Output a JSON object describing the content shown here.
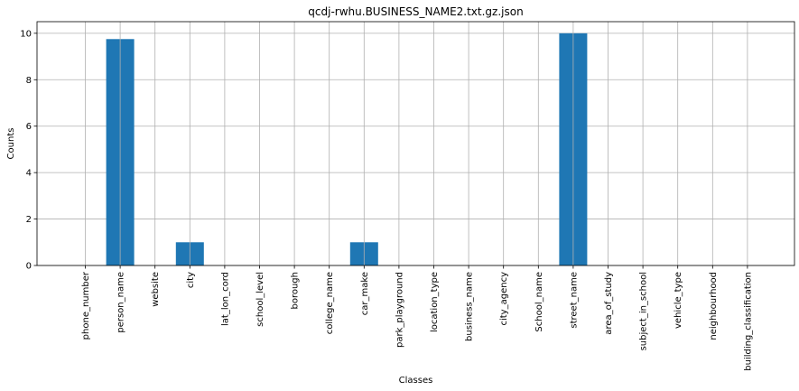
{
  "chart_data": {
    "type": "bar",
    "title": "qcdj-rwhu.BUSINESS_NAME2.txt.gz.json",
    "xlabel": "Classes",
    "ylabel": "Counts",
    "categories": [
      "phone_number",
      "person_name",
      "website",
      "city",
      "lat_lon_cord",
      "school_level",
      "borough",
      "college_name",
      "car_make",
      "park_playground",
      "location_type",
      "business_name",
      "city_agency",
      "School_name",
      "street_name",
      "area_of_study",
      "subject_in_school",
      "vehicle_type",
      "neighbourhood",
      "building_classification"
    ],
    "values": [
      0,
      9.75,
      0,
      1,
      0,
      0,
      0,
      0,
      1,
      0,
      0,
      0,
      0,
      0,
      10,
      0,
      0,
      0,
      0,
      0
    ],
    "ylim": [
      0,
      10.5
    ],
    "yticks": [
      0,
      2,
      4,
      6,
      8,
      10
    ],
    "grid": true,
    "bar_color": "#1f77b4"
  }
}
